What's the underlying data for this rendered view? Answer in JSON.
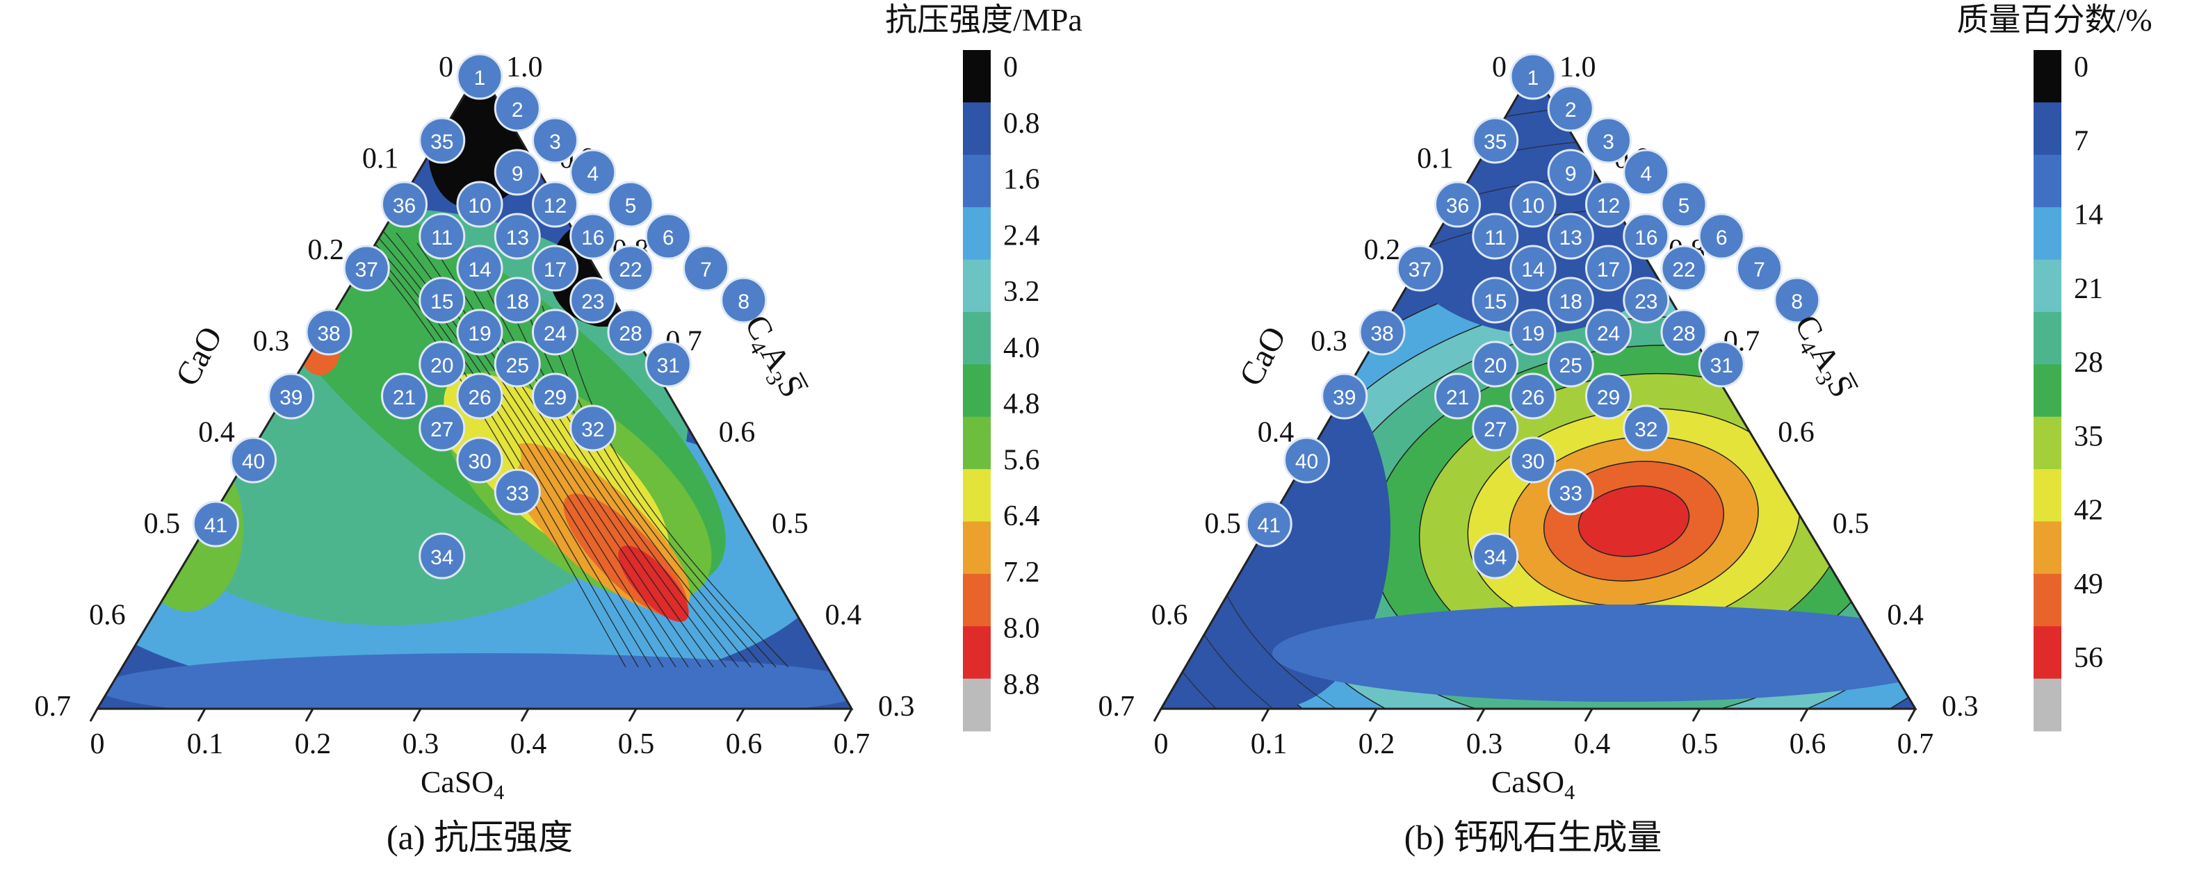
{
  "figure": {
    "panel_a_caption": "(a) 抗压强度",
    "panel_b_caption": "(b) 钙矾石生成量"
  },
  "chart_data": [
    {
      "type": "heatmap",
      "subtype": "ternary-contour",
      "panel": "a",
      "title": "(a) 抗压强度",
      "colorbar_title": "抗压强度/MPa",
      "colorbar_ticks": [
        "0",
        "0.8",
        "1.6",
        "2.4",
        "3.2",
        "4.0",
        "4.8",
        "5.6",
        "6.4",
        "7.2",
        "8.0",
        "8.8"
      ],
      "colorbar_colors": [
        "#0a0a0a",
        "#2f55a8",
        "#3f70c4",
        "#4fa9de",
        "#6cc3c4",
        "#4db58e",
        "#3fae50",
        "#6cbe3c",
        "#e3e33a",
        "#eba12c",
        "#e8642a",
        "#e02b2b",
        "#bbbbbb"
      ],
      "x_axis": {
        "label": "CaSO4",
        "ticks": [
          "0",
          "0.1",
          "0.2",
          "0.3",
          "0.4",
          "0.5",
          "0.6",
          "0.7"
        ],
        "range": [
          0,
          0.7
        ]
      },
      "left_axis": {
        "label": "CaO",
        "ticks": [
          "0",
          "0.1",
          "0.2",
          "0.3",
          "0.4",
          "0.5",
          "0.6",
          "0.7"
        ]
      },
      "right_axis": {
        "label": "C4A3S",
        "ticks": [
          "1.0",
          "0.9",
          "0.8",
          "0.7",
          "0.6",
          "0.5",
          "0.4",
          "0.3"
        ]
      },
      "hotspots": [
        {
          "casO4": 0.49,
          "cao": 0.06,
          "value": 8.8
        },
        {
          "casO4": 0.39,
          "cao": 0.14,
          "value": 6.4
        },
        {
          "casO4": 0.16,
          "cao": 0.24,
          "value": 7.6
        },
        {
          "casO4": 0.04,
          "cao": 0.52,
          "value": 3.4
        },
        {
          "casO4": 0.49,
          "cao": 0.15,
          "value": 7.0
        }
      ],
      "dead_zones": [
        {
          "casO4": 0.04,
          "cao": 0.87,
          "value": 0
        },
        {
          "casO4": 0.1,
          "cao": 0.78,
          "value": 0
        }
      ]
    },
    {
      "type": "heatmap",
      "subtype": "ternary-contour",
      "panel": "b",
      "title": "(b) 钙矾石生成量",
      "colorbar_title": "质量百分数/%",
      "colorbar_ticks": [
        "0",
        "7",
        "14",
        "21",
        "28",
        "35",
        "42",
        "49",
        "56"
      ],
      "colorbar_colors": [
        "#0a0a0a",
        "#2f55a8",
        "#3f70c4",
        "#4fa9de",
        "#6cc3c4",
        "#4db58e",
        "#3fae50",
        "#a4cf3a",
        "#e3e33a",
        "#eba12c",
        "#e8642a",
        "#e02b2b",
        "#bbbbbb"
      ],
      "x_axis": {
        "label": "CaSO4",
        "ticks": [
          "0",
          "0.1",
          "0.2",
          "0.3",
          "0.4",
          "0.5",
          "0.6",
          "0.7"
        ],
        "range": [
          0,
          0.7
        ]
      },
      "left_axis": {
        "label": "CaO",
        "ticks": [
          "0",
          "0.1",
          "0.2",
          "0.3",
          "0.4",
          "0.5",
          "0.6",
          "0.7"
        ]
      },
      "right_axis": {
        "label": "C4A3S",
        "ticks": [
          "1.0",
          "0.9",
          "0.8",
          "0.7",
          "0.6",
          "0.5",
          "0.4",
          "0.3"
        ]
      },
      "peak": {
        "casO4": 0.42,
        "cao": 0.08,
        "value": 56
      }
    }
  ],
  "samples": [
    {
      "id": "1",
      "casO4": 0.0,
      "cao": 0.0
    },
    {
      "id": "2",
      "casO4": 0.05,
      "cao": 0.05
    },
    {
      "id": "3",
      "casO4": 0.1,
      "cao": 0.1
    },
    {
      "id": "4",
      "casO4": 0.15,
      "cao": 0.15
    },
    {
      "id": "5",
      "casO4": 0.2,
      "cao": 0.2
    },
    {
      "id": "6",
      "casO4": 0.25,
      "cao": 0.25
    },
    {
      "id": "7",
      "casO4": 0.3,
      "cao": 0.3
    },
    {
      "id": "8",
      "casO4": 0.35,
      "cao": 0.35
    },
    {
      "id": "9",
      "casO4": 0.05,
      "cao": 0.15
    },
    {
      "id": "10",
      "casO4": 0.0,
      "cao": 0.2
    },
    {
      "id": "11",
      "casO4": -0.05,
      "cao": 0.25
    },
    {
      "id": "12",
      "casO4": 0.1,
      "cao": 0.2
    },
    {
      "id": "13",
      "casO4": 0.05,
      "cao": 0.25
    },
    {
      "id": "14",
      "casO4": 0.0,
      "cao": 0.3
    },
    {
      "id": "15",
      "casO4": -0.05,
      "cao": 0.35
    },
    {
      "id": "16",
      "casO4": 0.15,
      "cao": 0.25
    },
    {
      "id": "17",
      "casO4": 0.1,
      "cao": 0.3
    },
    {
      "id": "18",
      "casO4": 0.05,
      "cao": 0.35
    },
    {
      "id": "19",
      "casO4": 0.0,
      "cao": 0.4
    },
    {
      "id": "20",
      "casO4": -0.05,
      "cao": 0.45
    },
    {
      "id": "21",
      "casO4": -0.1,
      "cao": 0.5
    },
    {
      "id": "22",
      "casO4": 0.2,
      "cao": 0.3
    },
    {
      "id": "23",
      "casO4": 0.15,
      "cao": 0.35
    },
    {
      "id": "24",
      "casO4": 0.1,
      "cao": 0.4
    },
    {
      "id": "25",
      "casO4": 0.05,
      "cao": 0.45
    },
    {
      "id": "26",
      "casO4": 0.0,
      "cao": 0.5
    },
    {
      "id": "27",
      "casO4": -0.05,
      "cao": 0.55
    },
    {
      "id": "28",
      "casO4": 0.2,
      "cao": 0.4
    },
    {
      "id": "29",
      "casO4": 0.1,
      "cao": 0.5
    },
    {
      "id": "30",
      "casO4": 0.0,
      "cao": 0.6
    },
    {
      "id": "31",
      "casO4": 0.25,
      "cao": 0.45
    },
    {
      "id": "32",
      "casO4": 0.15,
      "cao": 0.55
    },
    {
      "id": "33",
      "casO4": 0.05,
      "cao": 0.65
    },
    {
      "id": "34",
      "casO4": -0.05,
      "cao": 0.75
    },
    {
      "id": "35",
      "casO4": -0.05,
      "cao": 0.1
    },
    {
      "id": "36",
      "casO4": -0.1,
      "cao": 0.2
    },
    {
      "id": "37",
      "casO4": -0.15,
      "cao": 0.3
    },
    {
      "id": "38",
      "casO4": -0.2,
      "cao": 0.4
    },
    {
      "id": "39",
      "casO4": -0.25,
      "cao": 0.5
    },
    {
      "id": "40",
      "casO4": -0.3,
      "cao": 0.6
    },
    {
      "id": "41",
      "casO4": -0.35,
      "cao": 0.7
    }
  ]
}
